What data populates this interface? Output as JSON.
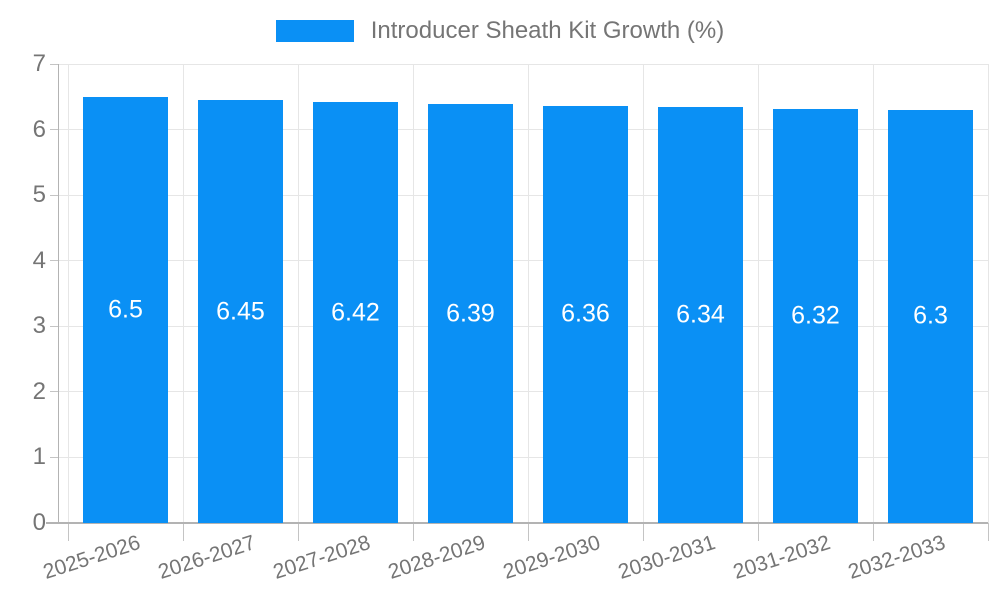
{
  "chart_data": {
    "type": "bar",
    "title": "",
    "legend": {
      "position": "top",
      "label": "Introducer Sheath Kit Growth (%)"
    },
    "categories": [
      "2025-2026",
      "2026-2027",
      "2027-2028",
      "2028-2029",
      "2029-2030",
      "2030-2031",
      "2031-2032",
      "2032-2033"
    ],
    "series": [
      {
        "name": "Introducer Sheath Kit Growth (%)",
        "values": [
          6.5,
          6.45,
          6.42,
          6.39,
          6.36,
          6.34,
          6.32,
          6.3
        ]
      }
    ],
    "value_labels": [
      "6.5",
      "6.45",
      "6.42",
      "6.39",
      "6.36",
      "6.34",
      "6.32",
      "6.3"
    ],
    "xlabel": "",
    "ylabel": "",
    "ylim": [
      0,
      7
    ],
    "yticks": [
      0,
      1,
      2,
      3,
      4,
      5,
      6,
      7
    ],
    "grid": "on",
    "colors": {
      "bar": "#0a90f5",
      "bar_value_text": "#ffffff",
      "axis_text": "#757575",
      "legend_text": "#757575",
      "gridline": "#e6e6e6",
      "axis_line": "#b3b3b3",
      "tick": "#c4c4c4",
      "background": "#ffffff"
    }
  }
}
